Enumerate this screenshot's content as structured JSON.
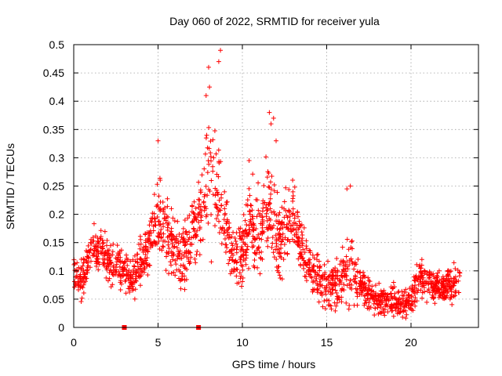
{
  "chart_data": {
    "type": "scatter",
    "title": "Day 060 of 2022, SRMTID for receiver yula",
    "xlabel": "GPS time / hours",
    "ylabel": "SRMTID / TECUs",
    "xlim": [
      0,
      24
    ],
    "ylim": [
      0,
      0.5
    ],
    "x_ticks": [
      0,
      5,
      10,
      15,
      20
    ],
    "x_tick_labels": [
      "0",
      "5",
      "10",
      "15",
      "20"
    ],
    "y_ticks": [
      0,
      0.05,
      0.1,
      0.15,
      0.2,
      0.25,
      0.3,
      0.35,
      0.4,
      0.45,
      0.5
    ],
    "y_tick_labels": [
      "0",
      "0.05",
      "0.1",
      "0.15",
      "0.2",
      "0.25",
      "0.3",
      "0.35",
      "0.4",
      "0.45",
      "0.5"
    ],
    "grid": true,
    "marker": "+",
    "color": "#ff0000",
    "series": [
      {
        "name": "SRMTID",
        "envelope_hours": [
          0,
          0.5,
          1,
          1.5,
          2,
          2.5,
          3,
          3.5,
          4,
          4.5,
          5,
          5.5,
          6,
          6.5,
          7,
          7.5,
          8,
          8.5,
          9,
          9.5,
          10,
          10.5,
          11,
          11.5,
          12,
          12.5,
          13,
          13.5,
          14,
          14.5,
          15,
          15.5,
          16,
          16.5,
          17,
          17.5,
          18,
          18.5,
          19,
          19.5,
          20,
          20.5,
          21,
          21.5,
          22,
          22.5,
          23
        ],
        "envelope_center": [
          0.095,
          0.085,
          0.13,
          0.14,
          0.12,
          0.11,
          0.1,
          0.08,
          0.12,
          0.15,
          0.2,
          0.17,
          0.13,
          0.12,
          0.17,
          0.2,
          0.26,
          0.24,
          0.18,
          0.12,
          0.13,
          0.19,
          0.16,
          0.22,
          0.16,
          0.17,
          0.2,
          0.14,
          0.1,
          0.085,
          0.07,
          0.08,
          0.09,
          0.1,
          0.075,
          0.06,
          0.05,
          0.045,
          0.05,
          0.045,
          0.05,
          0.09,
          0.08,
          0.07,
          0.07,
          0.075,
          0.08
        ],
        "envelope_spread": [
          0.02,
          0.025,
          0.03,
          0.03,
          0.03,
          0.03,
          0.025,
          0.025,
          0.03,
          0.035,
          0.05,
          0.045,
          0.04,
          0.045,
          0.05,
          0.06,
          0.08,
          0.07,
          0.05,
          0.035,
          0.04,
          0.05,
          0.06,
          0.06,
          0.045,
          0.05,
          0.04,
          0.035,
          0.03,
          0.03,
          0.03,
          0.035,
          0.04,
          0.045,
          0.025,
          0.02,
          0.02,
          0.018,
          0.02,
          0.02,
          0.02,
          0.025,
          0.025,
          0.02,
          0.02,
          0.025,
          0.025
        ],
        "peaks": [
          {
            "x": 8.7,
            "y": 0.49
          },
          {
            "x": 8.6,
            "y": 0.47
          },
          {
            "x": 8.0,
            "y": 0.46
          },
          {
            "x": 7.85,
            "y": 0.41
          },
          {
            "x": 8.05,
            "y": 0.425
          },
          {
            "x": 11.6,
            "y": 0.38
          },
          {
            "x": 11.85,
            "y": 0.37
          },
          {
            "x": 11.7,
            "y": 0.36
          },
          {
            "x": 12.0,
            "y": 0.33
          },
          {
            "x": 5.0,
            "y": 0.33
          },
          {
            "x": 16.4,
            "y": 0.25
          },
          {
            "x": 16.2,
            "y": 0.245
          },
          {
            "x": 8.3,
            "y": 0.3
          },
          {
            "x": 10.4,
            "y": 0.295
          }
        ],
        "markers_on_axis": [
          {
            "x": 3.0,
            "y": 0
          },
          {
            "x": 7.4,
            "y": 0
          }
        ]
      }
    ]
  }
}
